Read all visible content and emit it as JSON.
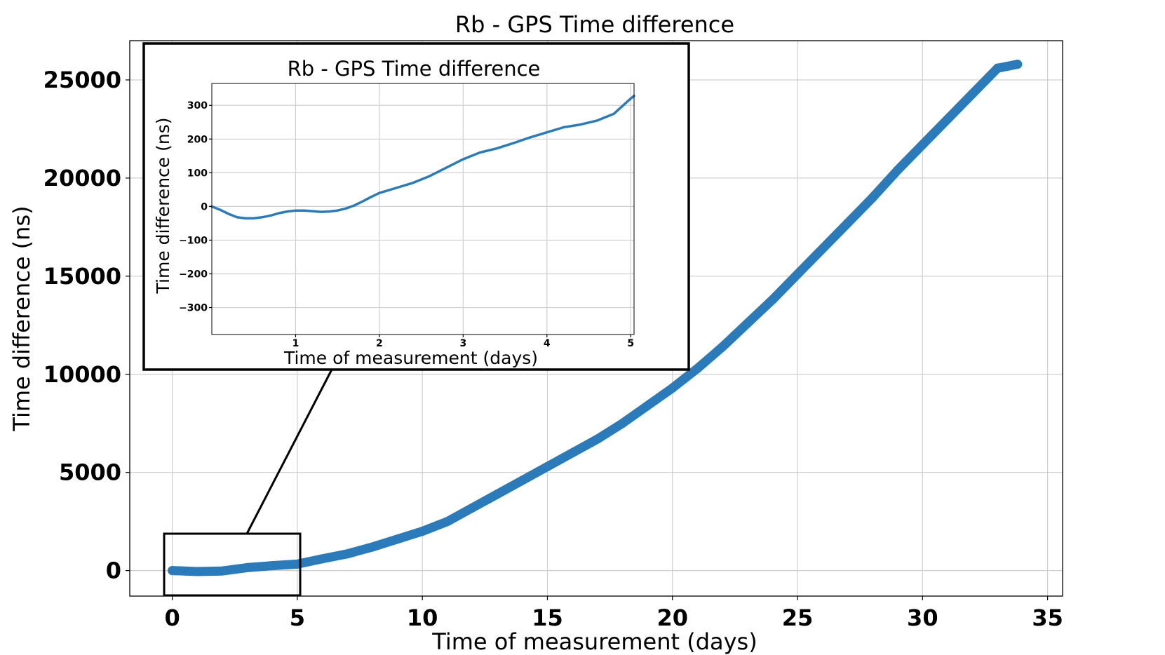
{
  "chart_data": [
    {
      "type": "scatter",
      "title": "Rb - GPS Time difference",
      "xlabel": "Time of measurement (days)",
      "ylabel": "Time difference (ns)",
      "xlim": [
        -1.7,
        35.6
      ],
      "ylim": [
        -1300,
        27000
      ],
      "xticks": [
        "0",
        "5",
        "10",
        "15",
        "20",
        "25",
        "30",
        "35"
      ],
      "yticks": [
        "0",
        "5000",
        "10000",
        "15000",
        "20000",
        "25000"
      ],
      "grid": true,
      "series": [
        {
          "color": "#2b7bba",
          "x": [
            0,
            1,
            2,
            3,
            4,
            5,
            6,
            7,
            8,
            9,
            10,
            11,
            12,
            13,
            14,
            15,
            16,
            17,
            18,
            19,
            20,
            21,
            22,
            23,
            24,
            25,
            26,
            27,
            28,
            29,
            30,
            31,
            32,
            33,
            33.8
          ],
          "y": [
            0,
            -50,
            -20,
            150,
            250,
            330,
            600,
            850,
            1200,
            1600,
            2000,
            2500,
            3200,
            3900,
            4600,
            5300,
            6000,
            6700,
            7500,
            8400,
            9300,
            10300,
            11400,
            12600,
            13800,
            15100,
            16400,
            17700,
            19000,
            20400,
            21700,
            23000,
            24300,
            25600,
            25800
          ]
        }
      ]
    },
    {
      "type": "line",
      "title": "Rb - GPS Time difference",
      "xlabel": "Time of measurement (days)",
      "ylabel": "Time difference (ns)",
      "xlim": [
        0,
        5.04
      ],
      "ylim": [
        -380,
        365
      ],
      "xticks": [
        "1",
        "2",
        "3",
        "4",
        "5"
      ],
      "yticks": [
        "300",
        "200",
        "100",
        "0",
        "−100",
        "−200",
        "−300"
      ],
      "grid": true,
      "series": [
        {
          "color": "#2b7bba",
          "x": [
            0,
            0.1,
            0.2,
            0.3,
            0.4,
            0.5,
            0.6,
            0.7,
            0.8,
            0.9,
            1.0,
            1.1,
            1.2,
            1.3,
            1.4,
            1.5,
            1.6,
            1.7,
            1.8,
            1.9,
            2.0,
            2.2,
            2.4,
            2.6,
            2.8,
            3.0,
            3.2,
            3.4,
            3.6,
            3.8,
            4.0,
            4.2,
            4.4,
            4.6,
            4.8,
            5.0,
            5.04
          ],
          "y": [
            0,
            -10,
            -22,
            -32,
            -35,
            -35,
            -32,
            -27,
            -20,
            -15,
            -12,
            -12,
            -14,
            -16,
            -15,
            -12,
            -6,
            3,
            15,
            28,
            40,
            55,
            70,
            90,
            115,
            140,
            160,
            172,
            188,
            205,
            220,
            235,
            243,
            255,
            275,
            320,
            328
          ]
        }
      ]
    }
  ]
}
